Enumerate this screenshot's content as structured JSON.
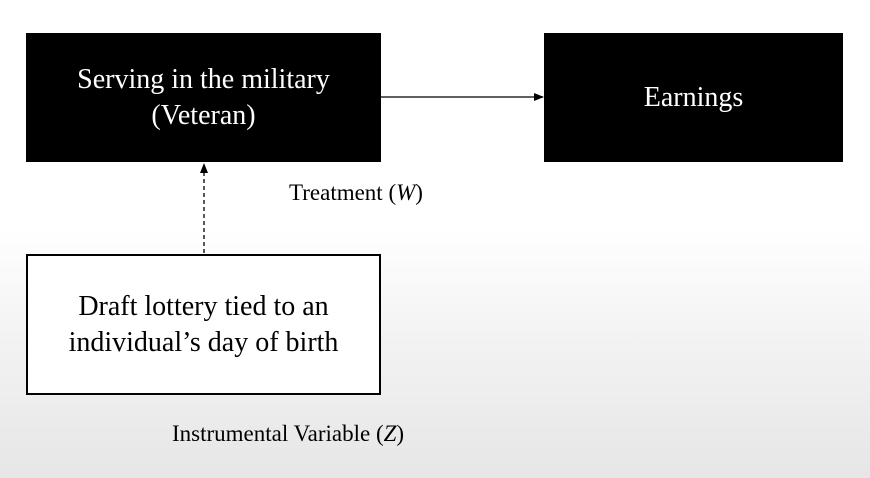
{
  "diagram": {
    "nodes": {
      "treatment": {
        "line1": "Serving in the military",
        "line2": "(Veteran)"
      },
      "outcome": {
        "line1": "Earnings"
      },
      "instrument": {
        "line1": "Draft lottery tied to an",
        "line2": "individual’s day of birth"
      }
    },
    "labels": {
      "treatment": {
        "text": "Treatment (",
        "var": "W",
        "close": ")"
      },
      "instrument": {
        "text": "Instrumental Variable (",
        "var": "Z",
        "close": ")"
      }
    },
    "edges": [
      {
        "from": "treatment",
        "to": "outcome",
        "style": "solid"
      },
      {
        "from": "instrument",
        "to": "treatment",
        "style": "dashed"
      }
    ],
    "colors": {
      "node_fill_dark": "#000000",
      "node_text_dark": "#ffffff",
      "node_fill_light": "#ffffff",
      "edge": "#000000"
    }
  }
}
